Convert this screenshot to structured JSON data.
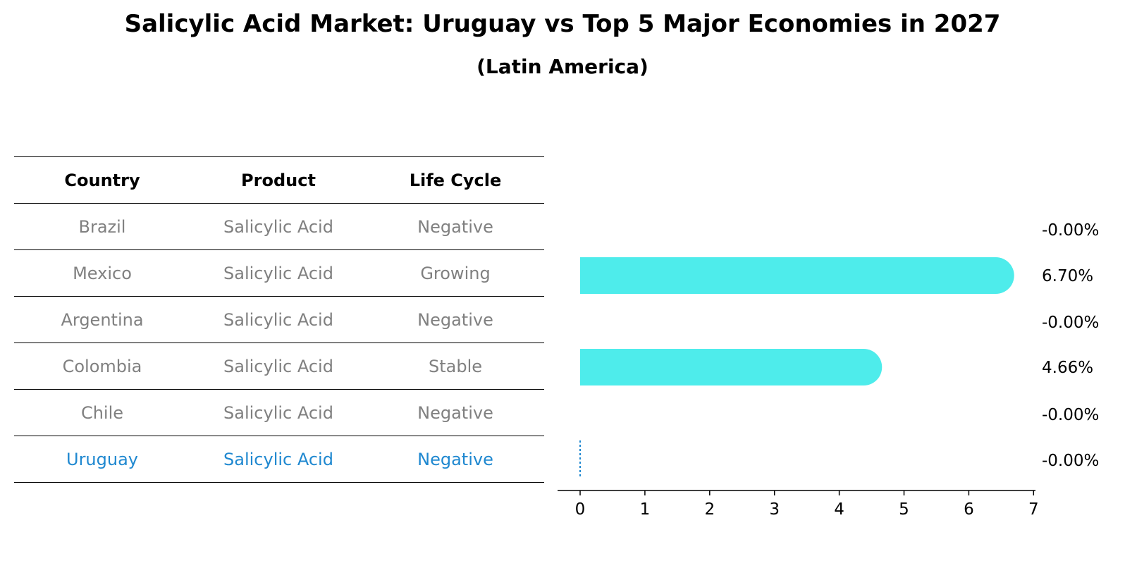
{
  "title": "Salicylic Acid Market: Uruguay vs Top 5 Major Economies in 2027",
  "subtitle": "(Latin America)",
  "table": {
    "headers": [
      "Country",
      "Product",
      "Life Cycle"
    ],
    "rows": [
      {
        "country": "Brazil",
        "product": "Salicylic Acid",
        "life_cycle": "Negative"
      },
      {
        "country": "Mexico",
        "product": "Salicylic Acid",
        "life_cycle": "Growing"
      },
      {
        "country": "Argentina",
        "product": "Salicylic Acid",
        "life_cycle": "Negative"
      },
      {
        "country": "Colombia",
        "product": "Salicylic Acid",
        "life_cycle": "Stable"
      },
      {
        "country": "Chile",
        "product": "Salicylic Acid",
        "life_cycle": "Negative"
      },
      {
        "country": "Uruguay",
        "product": "Salicylic Acid",
        "life_cycle": "Negative"
      }
    ]
  },
  "chart_data": {
    "type": "bar",
    "orientation": "horizontal",
    "categories": [
      "Brazil",
      "Mexico",
      "Argentina",
      "Colombia",
      "Chile",
      "Uruguay"
    ],
    "values": [
      0,
      6.7,
      0,
      4.66,
      0,
      0
    ],
    "value_labels": [
      "-0.00%",
      "6.70%",
      "-0.00%",
      "4.66%",
      "-0.00%",
      "-0.00%"
    ],
    "xlim": [
      0,
      7
    ],
    "xticks": [
      0,
      1,
      2,
      3,
      4,
      5,
      6,
      7
    ],
    "xlabel": "",
    "ylabel": "",
    "grid": false,
    "bar_color": "#4eeceb",
    "highlight_category": "Uruguay",
    "highlight_color": "#1f88d0"
  }
}
